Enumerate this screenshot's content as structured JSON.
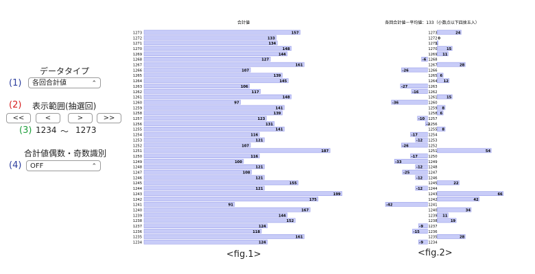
{
  "controls": {
    "data_type": {
      "number": "(1)",
      "title": "データタイプ",
      "value": "各回合計値"
    },
    "range": {
      "number": "(2)",
      "title": "表示範囲(抽選回)",
      "buttons": [
        "<<",
        "<",
        ">",
        ">>"
      ]
    },
    "range_display": {
      "number": "(3)",
      "from": "1234",
      "sep": "〜",
      "to": "1273"
    },
    "parity": {
      "number": "(4)",
      "title": "合計値偶数・奇数識別",
      "value": "OFF"
    }
  },
  "captions": {
    "fig1": "<fig.1>",
    "fig2": "<fig.2>"
  },
  "colors": {
    "num1": "#2c3e9e",
    "num2": "#d62020",
    "num3": "#1d9e3a",
    "bar_fill": "#c8ccf8",
    "bar_stroke": "#8c92e6"
  },
  "chart_data": [
    {
      "type": "bar",
      "orientation": "horizontal",
      "title": "合計値",
      "categories": [
        "1273",
        "1272",
        "1271",
        "1270",
        "1269",
        "1268",
        "1267",
        "1266",
        "1265",
        "1264",
        "1263",
        "1262",
        "1261",
        "1260",
        "1259",
        "1258",
        "1257",
        "1256",
        "1255",
        "1254",
        "1253",
        "1252",
        "1251",
        "1250",
        "1249",
        "1248",
        "1247",
        "1246",
        "1245",
        "1244",
        "1243",
        "1242",
        "1241",
        "1240",
        "1239",
        "1238",
        "1237",
        "1236",
        "1235",
        "1234"
      ],
      "values": [
        157,
        133,
        134,
        148,
        144,
        127,
        161,
        107,
        139,
        145,
        106,
        117,
        148,
        97,
        141,
        139,
        123,
        131,
        141,
        116,
        121,
        107,
        187,
        116,
        100,
        121,
        108,
        121,
        155,
        121,
        199,
        175,
        91,
        167,
        144,
        152,
        124,
        118,
        161,
        124
      ],
      "xlim": [
        0,
        200
      ]
    },
    {
      "type": "bar",
      "orientation": "horizontal",
      "title": "各回合計値－平均値：133（小数点以下四捨五入）",
      "categories": [
        "1273",
        "1272",
        "1271",
        "1270",
        "1269",
        "1268",
        "1267",
        "1266",
        "1265",
        "1264",
        "1263",
        "1262",
        "1261",
        "1260",
        "1259",
        "1258",
        "1257",
        "1256",
        "1255",
        "1254",
        "1253",
        "1252",
        "1251",
        "1250",
        "1249",
        "1248",
        "1247",
        "1246",
        "1245",
        "1244",
        "1243",
        "1242",
        "1241",
        "1240",
        "1239",
        "1238",
        "1237",
        "1236",
        "1235",
        "1234"
      ],
      "values": [
        24,
        0,
        1,
        15,
        11,
        -6,
        28,
        -26,
        6,
        12,
        -27,
        -16,
        15,
        -36,
        8,
        6,
        -10,
        -2,
        8,
        -17,
        -12,
        -26,
        54,
        -17,
        -33,
        -12,
        -25,
        -12,
        22,
        -12,
        66,
        42,
        -42,
        34,
        11,
        19,
        -9,
        -15,
        28,
        -9
      ],
      "xlim": [
        -42,
        66
      ]
    }
  ]
}
